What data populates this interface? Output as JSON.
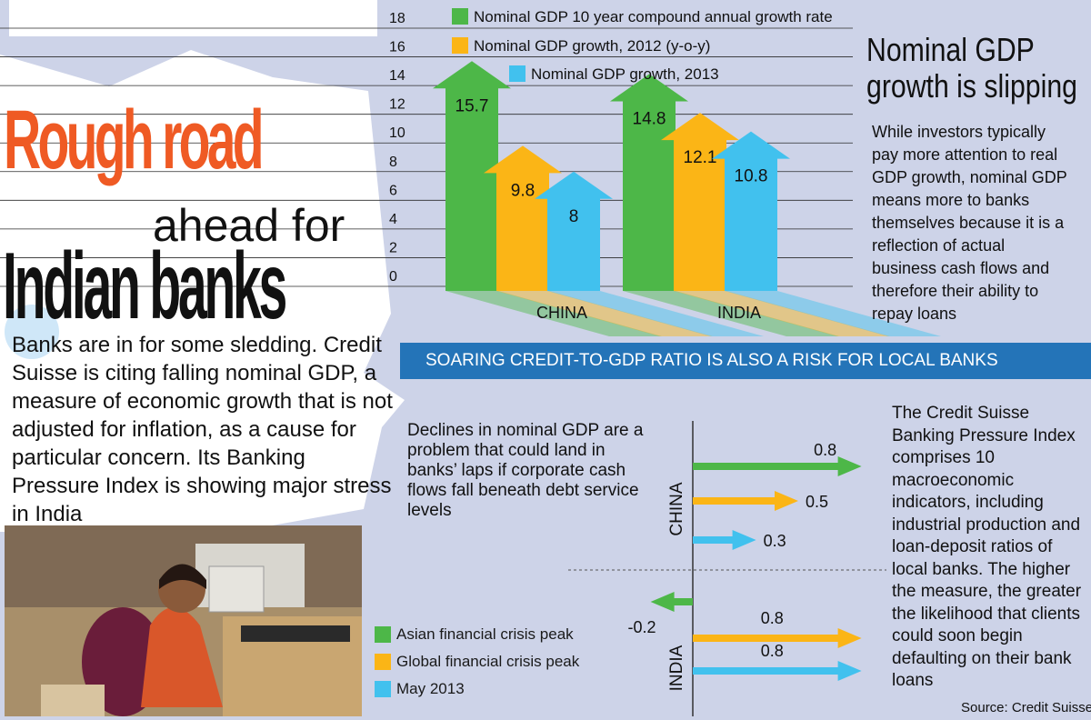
{
  "headline": {
    "line1": "Rough road",
    "line2": "ahead for",
    "line3": "Indian banks"
  },
  "intro_text": "Banks are in for some sledding. Credit Suisse is citing falling nominal GDP, a measure of economic growth that is not adjusted for inflation, as a cause for particular concern. Its Banking Pressure Index is showing major stress in India",
  "sidebar": {
    "heading_line1": "Nominal GDP",
    "heading_line2": "growth is slipping",
    "body": "While investors typically pay more attention to real GDP growth, nominal GDP means more to banks themselves because it is a reflection of actual business cash flows and therefore their ability to repay loans"
  },
  "band_text": "SOARING CREDIT-TO-GDP RATIO IS ALSO A RISK FOR LOCAL BANKS",
  "lower_left_text": "Declines in nominal GDP are a problem that could land in banks’ laps if corporate cash flows fall beneath debt service levels",
  "lower_right_text": "The Credit Suisse Banking Pressure Index comprises 10 macroeconomic indicators, including industrial production and loan-deposit ratios of local banks. The higher the measure, the greater the likelihood that clients could soon begin defaulting on their bank loans",
  "source": "Source: Credit Suisse",
  "colors": {
    "green": "#4db748",
    "orange": "#fbb516",
    "blue": "#41c1ee",
    "band": "#2474b8",
    "title_orange": "#ef5a24",
    "background": "#cdd3e8"
  },
  "chart_data": [
    {
      "type": "bar",
      "title": "Nominal GDP growth is slipping",
      "categories": [
        "CHINA",
        "INDIA"
      ],
      "series": [
        {
          "name": "Nominal GDP 10 year compound annual growth rate",
          "values": [
            15.7,
            14.8
          ],
          "color": "#4db748"
        },
        {
          "name": "Nominal GDP growth, 2012 (y-o-y)",
          "values": [
            9.8,
            12.1
          ],
          "color": "#fbb516"
        },
        {
          "name": "Nominal GDP growth, 2013",
          "values": [
            8,
            10.8
          ],
          "color": "#41c1ee"
        }
      ],
      "ylim": [
        0,
        18
      ],
      "yticks": [
        0,
        2,
        4,
        6,
        8,
        10,
        12,
        14,
        16,
        18
      ],
      "value_labels": [
        "15.7",
        "9.8",
        "8",
        "14.8",
        "12.1",
        "10.8"
      ],
      "grid": true,
      "legend": "top"
    },
    {
      "type": "bar",
      "orientation": "horizontal",
      "title": "Credit Suisse Banking Pressure Index",
      "groups": [
        "CHINA",
        "INDIA"
      ],
      "series": [
        {
          "name": "Asian financial crisis peak",
          "values": [
            0.8,
            -0.2
          ],
          "labels": [
            "0.8",
            "-0.2"
          ],
          "color": "#4db748"
        },
        {
          "name": "Global financial crisis peak",
          "values": [
            0.5,
            0.8
          ],
          "labels": [
            "0.5",
            "0.8"
          ],
          "color": "#fbb516"
        },
        {
          "name": "May 2013",
          "values": [
            0.3,
            0.8
          ],
          "labels": [
            "0.3",
            "0.8"
          ],
          "color": "#41c1ee"
        }
      ],
      "legend": "bottom-left"
    }
  ]
}
